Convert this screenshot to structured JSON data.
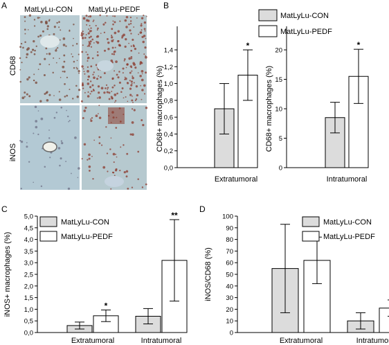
{
  "panel_labels": {
    "A": "A",
    "B": "B",
    "C": "C",
    "D": "D"
  },
  "micrographs": {
    "col_labels": [
      "MatLyLu-CON",
      "MatLyLu-PEDF"
    ],
    "row_labels": [
      "CD68",
      "iNOS"
    ]
  },
  "colors": {
    "con": "#dcdcdc",
    "pedf": "#ffffff",
    "stroke": "#000000",
    "tissue": "#b9ccd3",
    "stain": "#8c3a2e"
  },
  "legend": {
    "con": "MatLyLu-CON",
    "pedf": "MatLyLu-PEDF"
  },
  "chart_data": [
    {
      "id": "B1",
      "type": "bar",
      "ylabel": "CD68+ macrophages (%)",
      "ylim": [
        0,
        1.4
      ],
      "yticks": [
        "0,0",
        "0,2",
        "0,4",
        "0,6",
        "0,8",
        "1,0",
        "1,2",
        "1,4"
      ],
      "categories": [
        "Extratumoral"
      ],
      "series": [
        {
          "name": "MatLyLu-CON",
          "values": [
            0.7
          ],
          "err": [
            0.3
          ]
        },
        {
          "name": "MatLyLu-PEDF",
          "values": [
            1.1
          ],
          "err": [
            0.3
          ]
        }
      ],
      "annotations": [
        {
          "series": 1,
          "category": 0,
          "text": "*"
        }
      ]
    },
    {
      "id": "B2",
      "type": "bar",
      "ylabel": "CD68+ macrophages (%)",
      "ylim": [
        0,
        20
      ],
      "yticks": [
        "0",
        "5",
        "10",
        "15",
        "20"
      ],
      "categories": [
        "Intratumoral"
      ],
      "series": [
        {
          "name": "MatLyLu-CON",
          "values": [
            8.5
          ],
          "err": [
            2.6
          ]
        },
        {
          "name": "MatLyLu-PEDF",
          "values": [
            15.5
          ],
          "err": [
            4.6
          ]
        }
      ],
      "annotations": [
        {
          "series": 1,
          "category": 0,
          "text": "*"
        }
      ]
    },
    {
      "id": "C",
      "type": "bar",
      "ylabel": "iNOS+ macrophages (%)",
      "ylim": [
        0,
        5
      ],
      "yticks": [
        "0,0",
        "0,5",
        "1,0",
        "1,5",
        "2,0",
        "2,5",
        "3,0",
        "3,5",
        "4,0",
        "4,5",
        "5,0"
      ],
      "categories": [
        "Extratumoral",
        "Intratumoral"
      ],
      "series": [
        {
          "name": "MatLyLu-CON",
          "values": [
            0.3,
            0.7
          ],
          "err": [
            0.15,
            0.33
          ]
        },
        {
          "name": "MatLyLu-PEDF",
          "values": [
            0.72,
            3.1
          ],
          "err": [
            0.25,
            1.75
          ]
        }
      ],
      "annotations": [
        {
          "series": 1,
          "category": 0,
          "text": "*"
        },
        {
          "series": 1,
          "category": 1,
          "text": "**"
        }
      ]
    },
    {
      "id": "D",
      "type": "bar",
      "ylabel": "iNOS/CD68 (%)",
      "ylim": [
        0,
        100
      ],
      "yticks": [
        "0",
        "10",
        "20",
        "30",
        "40",
        "50",
        "60",
        "70",
        "80",
        "90",
        "100"
      ],
      "categories": [
        "Extratumoral",
        "Intratumoral"
      ],
      "series": [
        {
          "name": "MatLyLu-CON",
          "values": [
            55,
            10
          ],
          "err": [
            38,
            7
          ]
        },
        {
          "name": "MatLyLu-PEDF",
          "values": [
            62,
            21
          ],
          "err": [
            20,
            7
          ]
        }
      ],
      "annotations": [
        {
          "series": 1,
          "category": 1,
          "text": "*"
        }
      ]
    }
  ]
}
